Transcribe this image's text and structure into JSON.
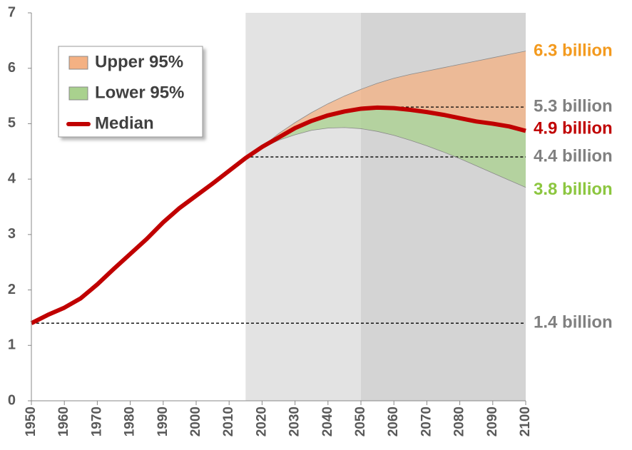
{
  "chart_data": {
    "type": "line",
    "x": [
      1950,
      1955,
      1960,
      1965,
      1970,
      1975,
      1980,
      1985,
      1990,
      1995,
      2000,
      2005,
      2010,
      2015,
      2020,
      2025,
      2030,
      2035,
      2040,
      2045,
      2050,
      2055,
      2060,
      2065,
      2070,
      2075,
      2080,
      2085,
      2090,
      2095,
      2100
    ],
    "xlim": [
      1950,
      2100
    ],
    "xticks": [
      1950,
      1960,
      1970,
      1980,
      1990,
      2000,
      2010,
      2020,
      2030,
      2040,
      2050,
      2060,
      2070,
      2080,
      2090,
      2100
    ],
    "ylim": [
      0,
      7
    ],
    "yticks": [
      0,
      1,
      2,
      3,
      4,
      5,
      6,
      7
    ],
    "series": [
      {
        "name": "Upper 95%",
        "color": "#f4b183",
        "band": "upper",
        "values": [
          null,
          null,
          null,
          null,
          null,
          null,
          null,
          null,
          null,
          null,
          null,
          null,
          null,
          4.38,
          4.58,
          4.82,
          5.02,
          5.2,
          5.36,
          5.5,
          5.62,
          5.73,
          5.82,
          5.89,
          5.95,
          6.01,
          6.07,
          6.13,
          6.19,
          6.25,
          6.31
        ]
      },
      {
        "name": "Lower 95%",
        "color": "#a9d18e",
        "band": "lower",
        "values": [
          null,
          null,
          null,
          null,
          null,
          null,
          null,
          null,
          null,
          null,
          null,
          null,
          null,
          4.38,
          4.56,
          4.7,
          4.8,
          4.88,
          4.92,
          4.93,
          4.91,
          4.86,
          4.79,
          4.7,
          4.6,
          4.49,
          4.37,
          4.24,
          4.11,
          3.98,
          3.85
        ]
      },
      {
        "name": "Median",
        "color": "#c00000",
        "values": [
          1.4,
          1.55,
          1.68,
          1.85,
          2.1,
          2.38,
          2.65,
          2.92,
          3.22,
          3.48,
          3.7,
          3.92,
          4.15,
          4.38,
          4.58,
          4.75,
          4.92,
          5.05,
          5.15,
          5.22,
          5.27,
          5.29,
          5.28,
          5.25,
          5.21,
          5.16,
          5.1,
          5.04,
          5.0,
          4.95,
          4.87
        ]
      }
    ],
    "shaded_regions": [
      {
        "from": 2015,
        "to": 2050,
        "color": "#e3e3e3"
      },
      {
        "from": 2050,
        "to": 2100,
        "color": "#d4d4d4"
      }
    ],
    "reference_lines": [
      {
        "value": 1.4,
        "from": 1950
      },
      {
        "value": 4.4,
        "from": 2015
      },
      {
        "value": 5.3,
        "from": 2050
      }
    ],
    "annotations": [
      {
        "text": "6.3 billion",
        "value": 6.3,
        "color": "#f39a1e"
      },
      {
        "text": "5.3 billion",
        "value": 5.3,
        "color": "#808080"
      },
      {
        "text": "4.9 billion",
        "value": 4.9,
        "color": "#c00000"
      },
      {
        "text": "4.4 billion",
        "value": 4.4,
        "color": "#808080"
      },
      {
        "text": "3.8 billion",
        "value": 3.8,
        "color": "#8cc63f"
      },
      {
        "text": "1.4 billion",
        "value": 1.4,
        "color": "#808080"
      }
    ]
  }
}
